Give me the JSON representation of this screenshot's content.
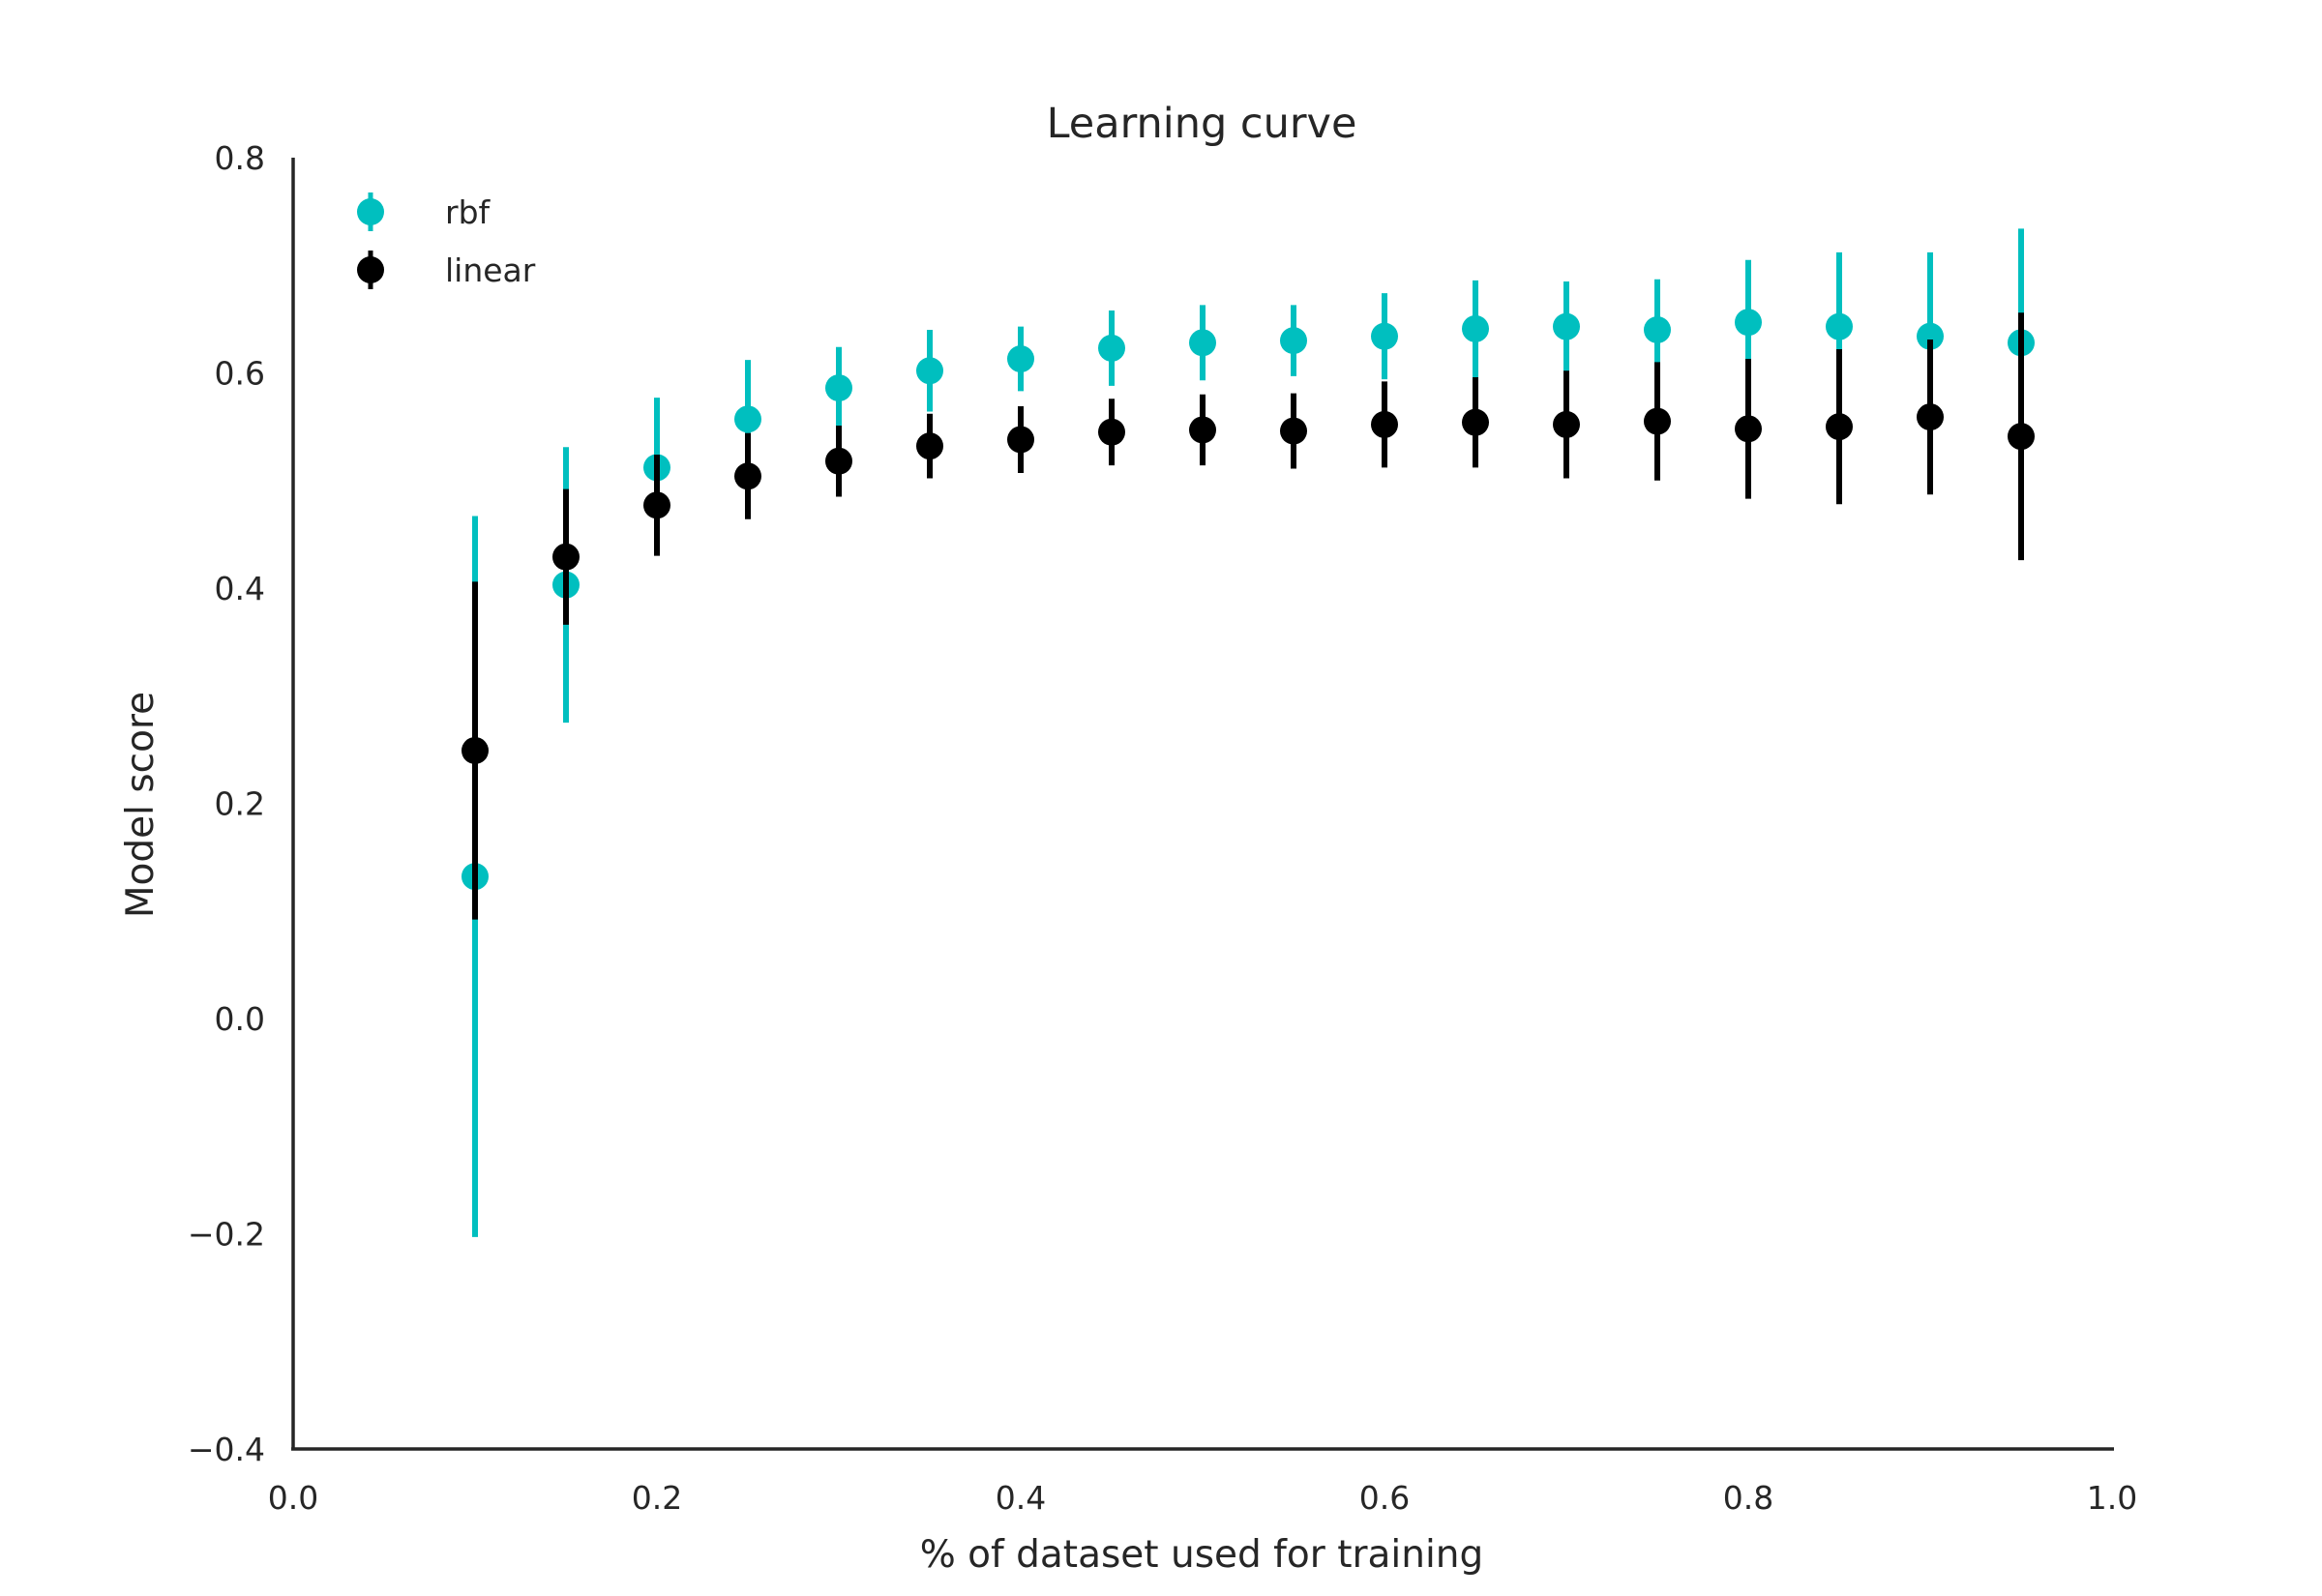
{
  "chart_data": {
    "type": "scatter",
    "title": "Learning curve",
    "xlabel": "% of dataset used for training",
    "ylabel": "Model score",
    "xlim": [
      0.0,
      1.0
    ],
    "ylim": [
      -0.4,
      0.8
    ],
    "xticks": [
      0.0,
      0.2,
      0.4,
      0.6,
      0.8,
      1.0
    ],
    "xtick_labels": [
      "0.0",
      "0.2",
      "0.4",
      "0.6",
      "0.8",
      "1.0"
    ],
    "yticks": [
      -0.4,
      -0.2,
      0.0,
      0.2,
      0.4,
      0.6,
      0.8
    ],
    "ytick_labels": [
      "−0.4",
      "−0.2",
      "0.0",
      "0.2",
      "0.4",
      "0.6",
      "0.8"
    ],
    "grid": false,
    "legend_position": "top-left",
    "x": [
      0.1,
      0.15,
      0.2,
      0.25,
      0.3,
      0.35,
      0.4,
      0.45,
      0.5,
      0.55,
      0.6,
      0.65,
      0.7,
      0.75,
      0.8,
      0.85,
      0.9,
      0.95
    ],
    "series": [
      {
        "name": "rbf",
        "color": "#00bfbf",
        "values": [
          0.132,
          0.403,
          0.512,
          0.557,
          0.586,
          0.602,
          0.613,
          0.623,
          0.628,
          0.63,
          0.634,
          0.641,
          0.643,
          0.64,
          0.647,
          0.643,
          0.634,
          0.628
        ],
        "errors": [
          0.335,
          0.128,
          0.065,
          0.055,
          0.038,
          0.038,
          0.03,
          0.035,
          0.035,
          0.033,
          0.04,
          0.045,
          0.042,
          0.047,
          0.058,
          0.069,
          0.078,
          0.106
        ]
      },
      {
        "name": "linear",
        "color": "#000000",
        "values": [
          0.249,
          0.429,
          0.477,
          0.504,
          0.518,
          0.532,
          0.538,
          0.545,
          0.547,
          0.546,
          0.552,
          0.554,
          0.552,
          0.555,
          0.548,
          0.55,
          0.559,
          0.541
        ],
        "errors": [
          0.157,
          0.063,
          0.047,
          0.04,
          0.033,
          0.03,
          0.031,
          0.031,
          0.033,
          0.035,
          0.04,
          0.042,
          0.05,
          0.055,
          0.065,
          0.072,
          0.072,
          0.115
        ]
      }
    ]
  }
}
